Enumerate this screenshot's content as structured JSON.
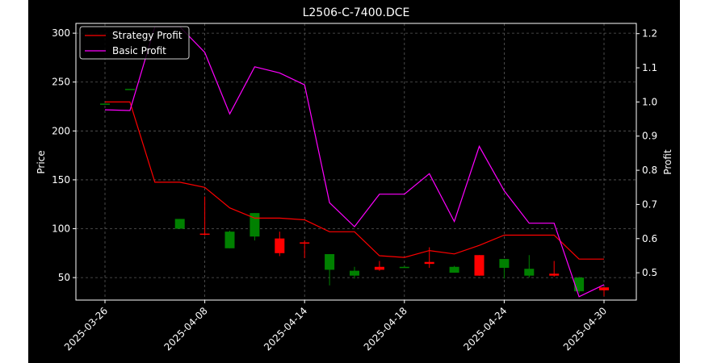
{
  "chart_data": {
    "type": "candlestick+line",
    "title": "L2506-C-7400.DCE",
    "ylabel_left": "Price",
    "ylabel_right": "Profit",
    "ylim_left": [
      27,
      310
    ],
    "ylim_right": [
      0.42,
      1.23
    ],
    "left_ticks": [
      50,
      100,
      150,
      200,
      250,
      300
    ],
    "right_ticks": [
      0.5,
      0.6,
      0.7,
      0.8,
      0.9,
      1.0,
      1.1,
      1.2
    ],
    "grid": true,
    "legend_position": "top-left",
    "colors": {
      "background": "#000000",
      "page": "#ffffff",
      "axes": "#ffffff",
      "grid": "#5a5a5a",
      "up": "#008000",
      "down": "#ff0000",
      "strategy": "#ff0000",
      "basic": "#ff00ff"
    },
    "x_labels": [
      "2025-03-26",
      "2025-04-08",
      "2025-04-14",
      "2025-04-18",
      "2025-04-24",
      "2025-04-30"
    ],
    "x_label_positions": [
      0,
      4,
      8,
      12,
      16,
      20
    ],
    "candles": [
      {
        "i": 0,
        "open": 228,
        "high": 228,
        "low": 228,
        "close": 228
      },
      {
        "i": 1,
        "open": 243,
        "high": 243,
        "low": 243,
        "close": 243
      },
      {
        "i": 3,
        "open": 100,
        "high": 110,
        "low": 100,
        "close": 110
      },
      {
        "i": 4,
        "open": 95,
        "high": 133,
        "low": 93,
        "close": 94
      },
      {
        "i": 5,
        "open": 80,
        "high": 98,
        "low": 80,
        "close": 97
      },
      {
        "i": 6,
        "open": 92,
        "high": 116,
        "low": 88,
        "close": 116
      },
      {
        "i": 7,
        "open": 90,
        "high": 97,
        "low": 72,
        "close": 75
      },
      {
        "i": 8,
        "open": 86,
        "high": 88,
        "low": 70,
        "close": 85
      },
      {
        "i": 9,
        "open": 58,
        "high": 74,
        "low": 42,
        "close": 74
      },
      {
        "i": 10,
        "open": 52,
        "high": 61,
        "low": 49,
        "close": 57
      },
      {
        "i": 11,
        "open": 61,
        "high": 67,
        "low": 57,
        "close": 58
      },
      {
        "i": 12,
        "open": 60,
        "high": 62,
        "low": 60,
        "close": 61
      },
      {
        "i": 13,
        "open": 66,
        "high": 81,
        "low": 60,
        "close": 64
      },
      {
        "i": 14,
        "open": 55,
        "high": 62,
        "low": 55,
        "close": 61
      },
      {
        "i": 15,
        "open": 73,
        "high": 73,
        "low": 52,
        "close": 52
      },
      {
        "i": 16,
        "open": 60,
        "high": 69,
        "low": 49,
        "close": 69
      },
      {
        "i": 17,
        "open": 52,
        "high": 73,
        "low": 50,
        "close": 59
      },
      {
        "i": 18,
        "open": 54,
        "high": 67,
        "low": 51,
        "close": 52
      },
      {
        "i": 19,
        "open": 36,
        "high": 51,
        "low": 34,
        "close": 50
      },
      {
        "i": 20,
        "open": 40,
        "high": 40,
        "low": 31,
        "close": 37
      }
    ],
    "series": [
      {
        "name": "Strategy Profit",
        "axis": "right",
        "x": [
          0,
          1,
          2,
          3,
          4,
          5,
          6,
          7,
          8,
          9,
          10,
          11,
          12,
          13,
          14,
          15,
          16,
          17,
          18,
          19,
          20
        ],
        "values": [
          1.0,
          1.0,
          0.765,
          0.765,
          0.75,
          0.69,
          0.66,
          0.66,
          0.655,
          0.62,
          0.62,
          0.55,
          0.545,
          0.565,
          0.555,
          0.58,
          0.61,
          0.61,
          0.61,
          0.54,
          0.54
        ]
      },
      {
        "name": "Basic Profit",
        "axis": "right",
        "x": [
          0,
          1,
          2,
          3,
          4,
          5,
          6,
          7,
          8,
          9,
          10,
          11,
          12,
          13,
          14,
          15,
          16,
          17,
          18,
          19,
          20
        ],
        "values": [
          0.977,
          0.975,
          1.22,
          1.22,
          1.145,
          0.965,
          1.103,
          1.085,
          1.05,
          0.705,
          0.635,
          0.73,
          0.73,
          0.79,
          0.65,
          0.87,
          0.74,
          0.645,
          0.645,
          0.43,
          0.465
        ]
      }
    ]
  }
}
